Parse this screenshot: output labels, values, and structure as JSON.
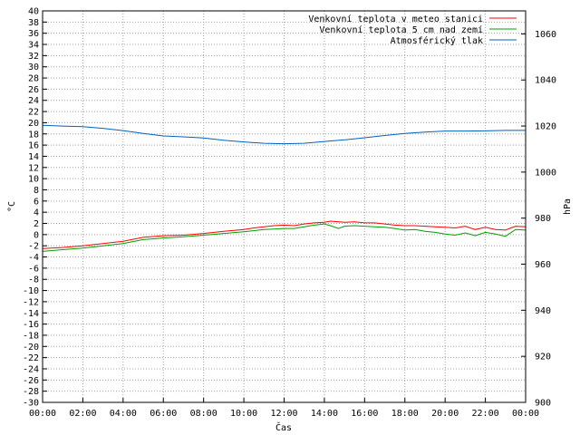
{
  "chart_data": {
    "type": "line",
    "xlabel": "Čas",
    "ylabel": "°C",
    "y2label": "hPa",
    "x_ticks": [
      "00:00",
      "02:00",
      "04:00",
      "06:00",
      "08:00",
      "10:00",
      "12:00",
      "14:00",
      "16:00",
      "18:00",
      "20:00",
      "22:00",
      "00:00"
    ],
    "x_range_hours": [
      0,
      24
    ],
    "ylim": [
      -30,
      40
    ],
    "y_step": 2,
    "y2lim": [
      900,
      1070
    ],
    "y2_ticks": [
      900,
      920,
      940,
      960,
      980,
      1000,
      1020,
      1040,
      1060
    ],
    "grid": true,
    "legend_position": "top-right",
    "series": [
      {
        "name": "Venkovní teplota v meteo stanici",
        "color": "#ff0000",
        "axis": "left",
        "x": [
          0,
          1,
          2,
          3,
          4,
          5,
          6,
          7,
          8,
          9,
          10,
          10.5,
          11,
          11.5,
          12,
          12.5,
          13,
          13.5,
          14,
          14.3,
          15,
          15.5,
          16,
          16.5,
          17,
          17.5,
          18,
          18.5,
          19,
          19.5,
          20,
          20.5,
          21,
          21.5,
          22,
          22.5,
          23,
          23.5,
          24
        ],
        "values": [
          -2.5,
          -2.3,
          -2,
          -1.6,
          -1.2,
          -0.5,
          -0.2,
          -0.1,
          0.2,
          0.6,
          0.9,
          1.2,
          1.4,
          1.6,
          1.7,
          1.6,
          1.9,
          2.1,
          2.2,
          2.4,
          2.2,
          2.3,
          2.1,
          2.1,
          1.9,
          1.7,
          1.6,
          1.6,
          1.5,
          1.4,
          1.3,
          1.2,
          1.5,
          0.9,
          1.3,
          0.9,
          0.8,
          1.5,
          1.4
        ]
      },
      {
        "name": "Venkovní teplota 5 cm nad zemí",
        "color": "#00a000",
        "axis": "left",
        "x": [
          0,
          1,
          2,
          3,
          4,
          5,
          6,
          7,
          8,
          9,
          10,
          10.5,
          11,
          11.5,
          12,
          12.5,
          13,
          13.5,
          14,
          14.3,
          14.7,
          15,
          15.5,
          16,
          16.5,
          17,
          17.5,
          18,
          18.5,
          19,
          19.5,
          20,
          20.5,
          21,
          21.5,
          22,
          22.5,
          23,
          23.5,
          24
        ],
        "values": [
          -3,
          -2.7,
          -2.4,
          -2,
          -1.6,
          -0.9,
          -0.6,
          -0.4,
          -0.1,
          0.2,
          0.5,
          0.7,
          0.9,
          1,
          1.1,
          1.1,
          1.4,
          1.7,
          1.9,
          1.6,
          1.1,
          1.5,
          1.6,
          1.5,
          1.4,
          1.3,
          1.1,
          0.8,
          0.9,
          0.6,
          0.4,
          0.1,
          -0.1,
          0.3,
          -0.2,
          0.4,
          0.1,
          -0.3,
          0.9,
          0.8
        ]
      },
      {
        "name": "Atmosférický tlak",
        "color": "#0060c0",
        "axis": "right",
        "x": [
          0,
          1,
          2,
          3,
          4,
          5,
          6,
          7,
          8,
          9,
          10,
          11,
          12,
          13,
          14,
          15,
          16,
          17,
          18,
          19,
          20,
          21,
          22,
          23,
          24
        ],
        "values": [
          1020.3,
          1020,
          1019.7,
          1019,
          1018,
          1016.8,
          1015.7,
          1015.3,
          1014.8,
          1013.8,
          1013.1,
          1012.5,
          1012.3,
          1012.5,
          1013.3,
          1014,
          1014.9,
          1015.9,
          1016.8,
          1017.4,
          1017.8,
          1017.8,
          1017.9,
          1018.1,
          1018.1
        ]
      }
    ]
  }
}
